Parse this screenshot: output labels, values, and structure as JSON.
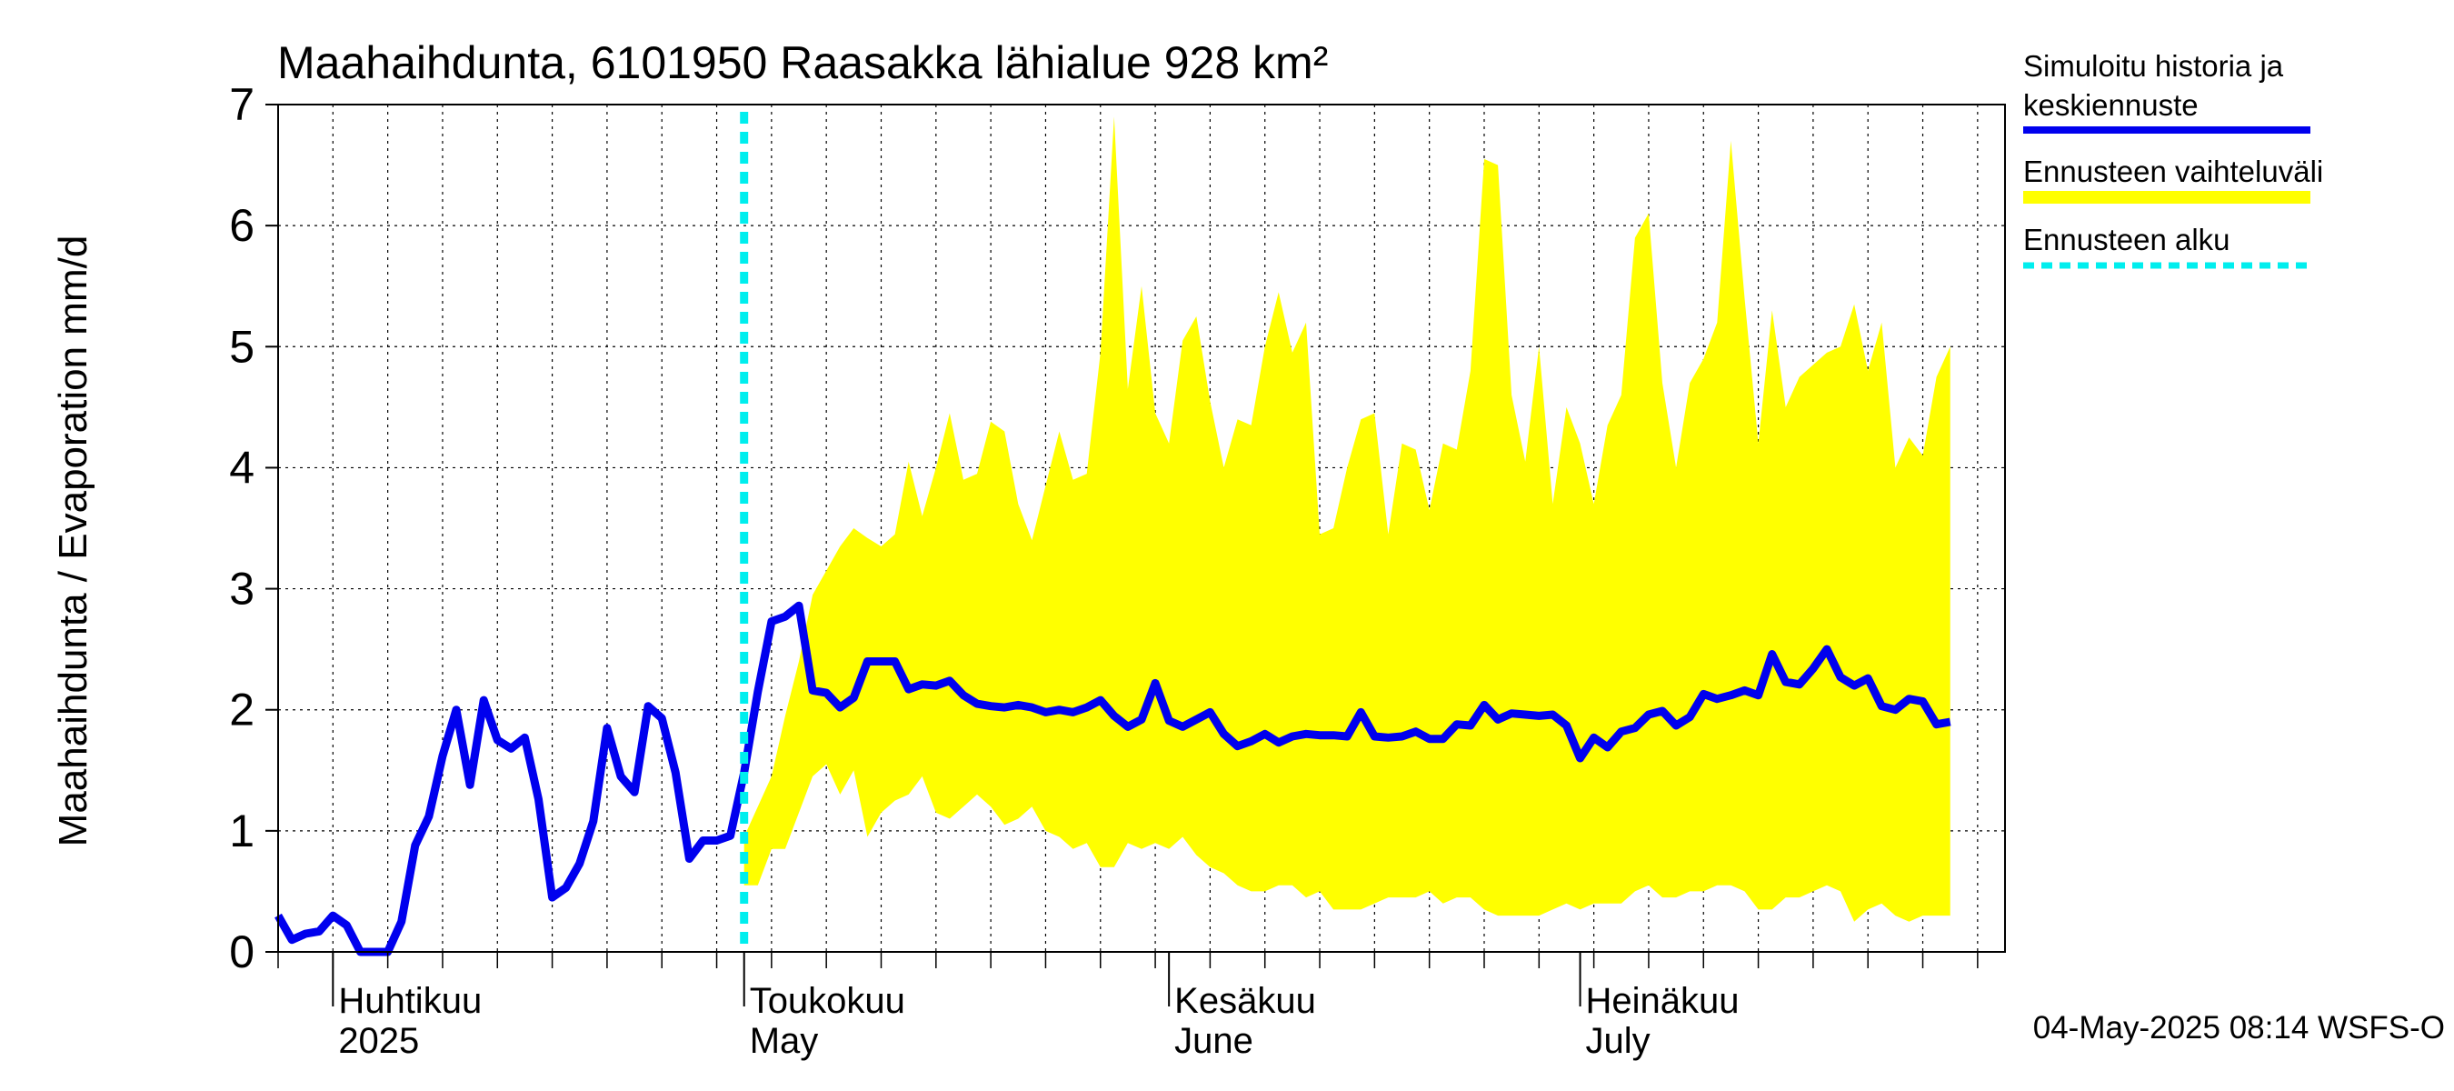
{
  "chart_data": {
    "type": "line",
    "title": "Maahaihdunta, 6101950 Raasakka lähialue 928 km²",
    "ylabel": "Maahaihdunta / Evaporation   mm/d",
    "ylim": [
      0,
      7
    ],
    "yticks": [
      0,
      1,
      2,
      3,
      4,
      5,
      6,
      7
    ],
    "x_start": "2025-03-28",
    "x_end": "2025-08-01",
    "month_labels": [
      {
        "date": "2025-04-01",
        "fi": "Huhtikuu",
        "en": "2025"
      },
      {
        "date": "2025-05-01",
        "fi": "Toukokuu",
        "en": "May"
      },
      {
        "date": "2025-06-01",
        "fi": "Kesäkuu",
        "en": "June"
      },
      {
        "date": "2025-07-01",
        "fi": "Heinäkuu",
        "en": "July"
      }
    ],
    "forecast_start": "2025-05-01",
    "legend": [
      {
        "label": "Simuloitu historia ja keskiennuste",
        "color": "#0000ee",
        "style": "solid"
      },
      {
        "label": "Ennusteen vaihteluväli",
        "color": "#ffff00",
        "style": "band"
      },
      {
        "label": "Ennusteen alku",
        "color": "#00eeee",
        "style": "dashed"
      }
    ],
    "footer": "04-May-2025 08:14 WSFS-O",
    "series": [
      {
        "name": "Simuloitu historia ja keskiennuste",
        "start_date": "2025-03-28",
        "values": [
          0.3,
          0.1,
          0.15,
          0.17,
          0.3,
          0.22,
          0,
          0,
          0,
          0.25,
          0.88,
          1.12,
          1.62,
          2.0,
          1.38,
          2.08,
          1.75,
          1.68,
          1.77,
          1.26,
          0.45,
          0.53,
          0.73,
          1.08,
          1.85,
          1.45,
          1.32,
          2.03,
          1.93,
          1.48,
          0.77,
          0.92,
          0.92,
          0.96,
          1.48,
          2.15,
          2.73,
          2.77,
          2.86,
          2.16,
          2.14,
          2.02,
          2.1,
          2.4,
          2.4,
          2.4,
          2.17,
          2.21,
          2.2,
          2.24,
          2.12,
          2.05,
          2.03,
          2.02,
          2.04,
          2.02,
          1.98,
          2.0,
          1.98,
          2.02,
          2.08,
          1.95,
          1.86,
          1.92,
          2.22,
          1.91,
          1.86,
          1.92,
          1.98,
          1.8,
          1.7,
          1.74,
          1.8,
          1.73,
          1.78,
          1.8,
          1.79,
          1.79,
          1.78,
          1.98,
          1.78,
          1.77,
          1.78,
          1.82,
          1.76,
          1.76,
          1.88,
          1.87,
          2.04,
          1.92,
          1.97,
          1.96,
          1.95,
          1.96,
          1.87,
          1.6,
          1.77,
          1.69,
          1.82,
          1.85,
          1.96,
          1.99,
          1.87,
          1.94,
          2.13,
          2.09,
          2.12,
          2.16,
          2.12,
          2.46,
          2.23,
          2.21,
          2.34,
          2.5,
          2.27,
          2.2,
          2.26,
          2.03,
          2.0,
          2.09,
          2.07,
          1.88,
          1.9
        ]
      }
    ],
    "band": {
      "name": "Ennusteen vaihteluväli",
      "start_date": "2025-05-01",
      "upper": [
        0.95,
        1.2,
        1.45,
        1.95,
        2.4,
        2.95,
        3.15,
        3.35,
        3.5,
        3.42,
        3.35,
        3.45,
        4.05,
        3.6,
        4.0,
        4.45,
        3.9,
        3.95,
        4.38,
        4.3,
        3.7,
        3.4,
        3.85,
        4.3,
        3.9,
        3.95,
        4.95,
        6.9,
        4.65,
        5.5,
        4.45,
        4.2,
        5.05,
        5.25,
        4.55,
        4.0,
        4.4,
        4.35,
        5.0,
        5.45,
        4.95,
        5.2,
        3.45,
        3.5,
        4.0,
        4.4,
        4.45,
        3.45,
        4.2,
        4.15,
        3.65,
        4.2,
        4.15,
        4.8,
        6.55,
        6.5,
        4.6,
        4.05,
        5.0,
        3.7,
        4.5,
        4.2,
        3.7,
        4.35,
        4.6,
        5.9,
        6.1,
        4.7,
        4.0,
        4.7,
        4.9,
        5.2,
        6.7,
        5.4,
        4.2,
        5.3,
        4.5,
        4.75,
        4.85,
        4.95,
        5.0,
        5.35,
        4.8,
        5.2,
        4.0,
        4.25,
        4.1,
        4.75,
        5.0
      ],
      "lower": [
        0.55,
        0.55,
        0.85,
        0.85,
        1.15,
        1.45,
        1.55,
        1.3,
        1.5,
        0.95,
        1.15,
        1.25,
        1.3,
        1.45,
        1.15,
        1.1,
        1.2,
        1.3,
        1.2,
        1.05,
        1.1,
        1.2,
        1.0,
        0.95,
        0.85,
        0.9,
        0.7,
        0.7,
        0.9,
        0.85,
        0.9,
        0.85,
        0.95,
        0.8,
        0.7,
        0.65,
        0.55,
        0.5,
        0.5,
        0.55,
        0.55,
        0.45,
        0.5,
        0.35,
        0.35,
        0.35,
        0.4,
        0.45,
        0.45,
        0.45,
        0.5,
        0.4,
        0.45,
        0.45,
        0.35,
        0.3,
        0.3,
        0.3,
        0.3,
        0.35,
        0.4,
        0.35,
        0.4,
        0.4,
        0.4,
        0.5,
        0.55,
        0.45,
        0.45,
        0.5,
        0.5,
        0.55,
        0.55,
        0.5,
        0.35,
        0.35,
        0.45,
        0.45,
        0.5,
        0.55,
        0.5,
        0.25,
        0.35,
        0.4,
        0.3,
        0.25,
        0.3,
        0.3,
        0.3
      ]
    }
  }
}
